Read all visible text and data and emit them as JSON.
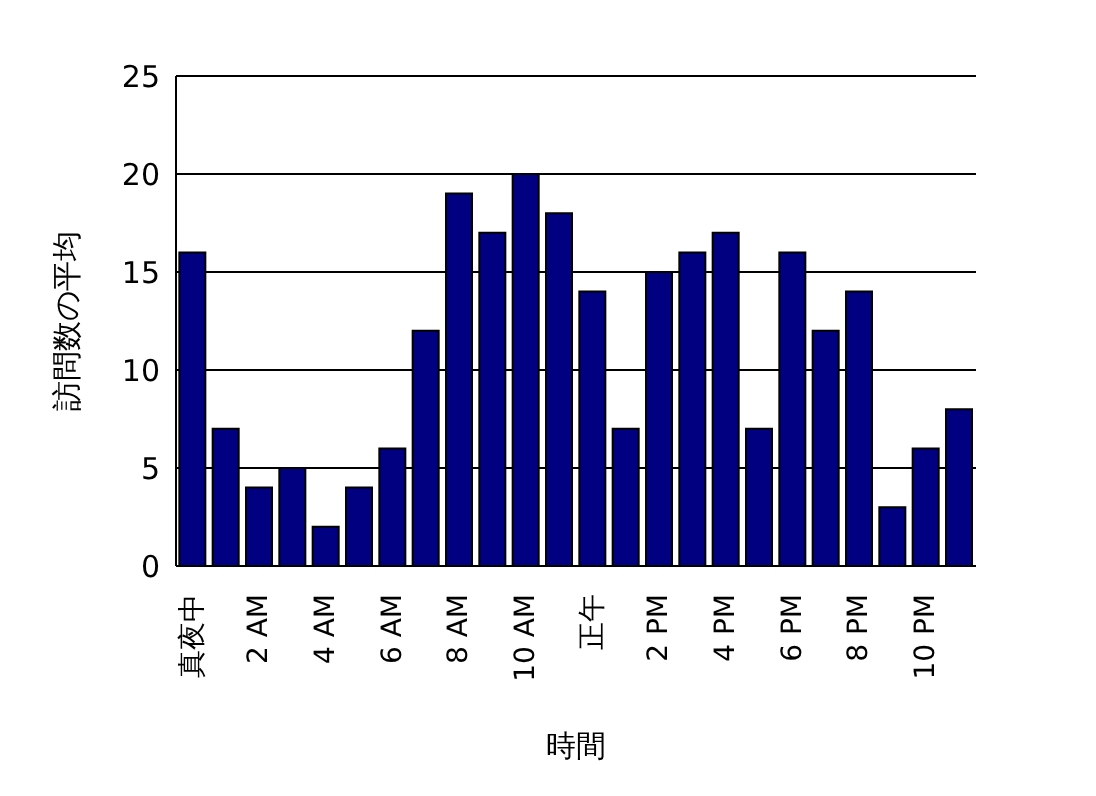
{
  "chart_data": {
    "type": "bar",
    "xlabel": "時間",
    "ylabel": "訪問数の平均",
    "categories": [
      "真夜中",
      null,
      "2 AM",
      null,
      "4 AM",
      null,
      "6 AM",
      null,
      "8 AM",
      null,
      "10 AM",
      null,
      "正午",
      null,
      "2 PM",
      null,
      "4 PM",
      null,
      "6 PM",
      null,
      "8 PM",
      null,
      "10 PM",
      null
    ],
    "values": [
      16,
      7,
      4,
      5,
      2,
      4,
      6,
      12,
      19,
      17,
      20,
      18,
      14,
      7,
      15,
      16,
      17,
      7,
      16,
      12,
      14,
      3,
      6,
      8
    ],
    "color": "#000080",
    "ylim": [
      0,
      25
    ],
    "yticks": [
      0,
      5,
      10,
      15,
      20,
      25
    ],
    "grid": "y"
  }
}
